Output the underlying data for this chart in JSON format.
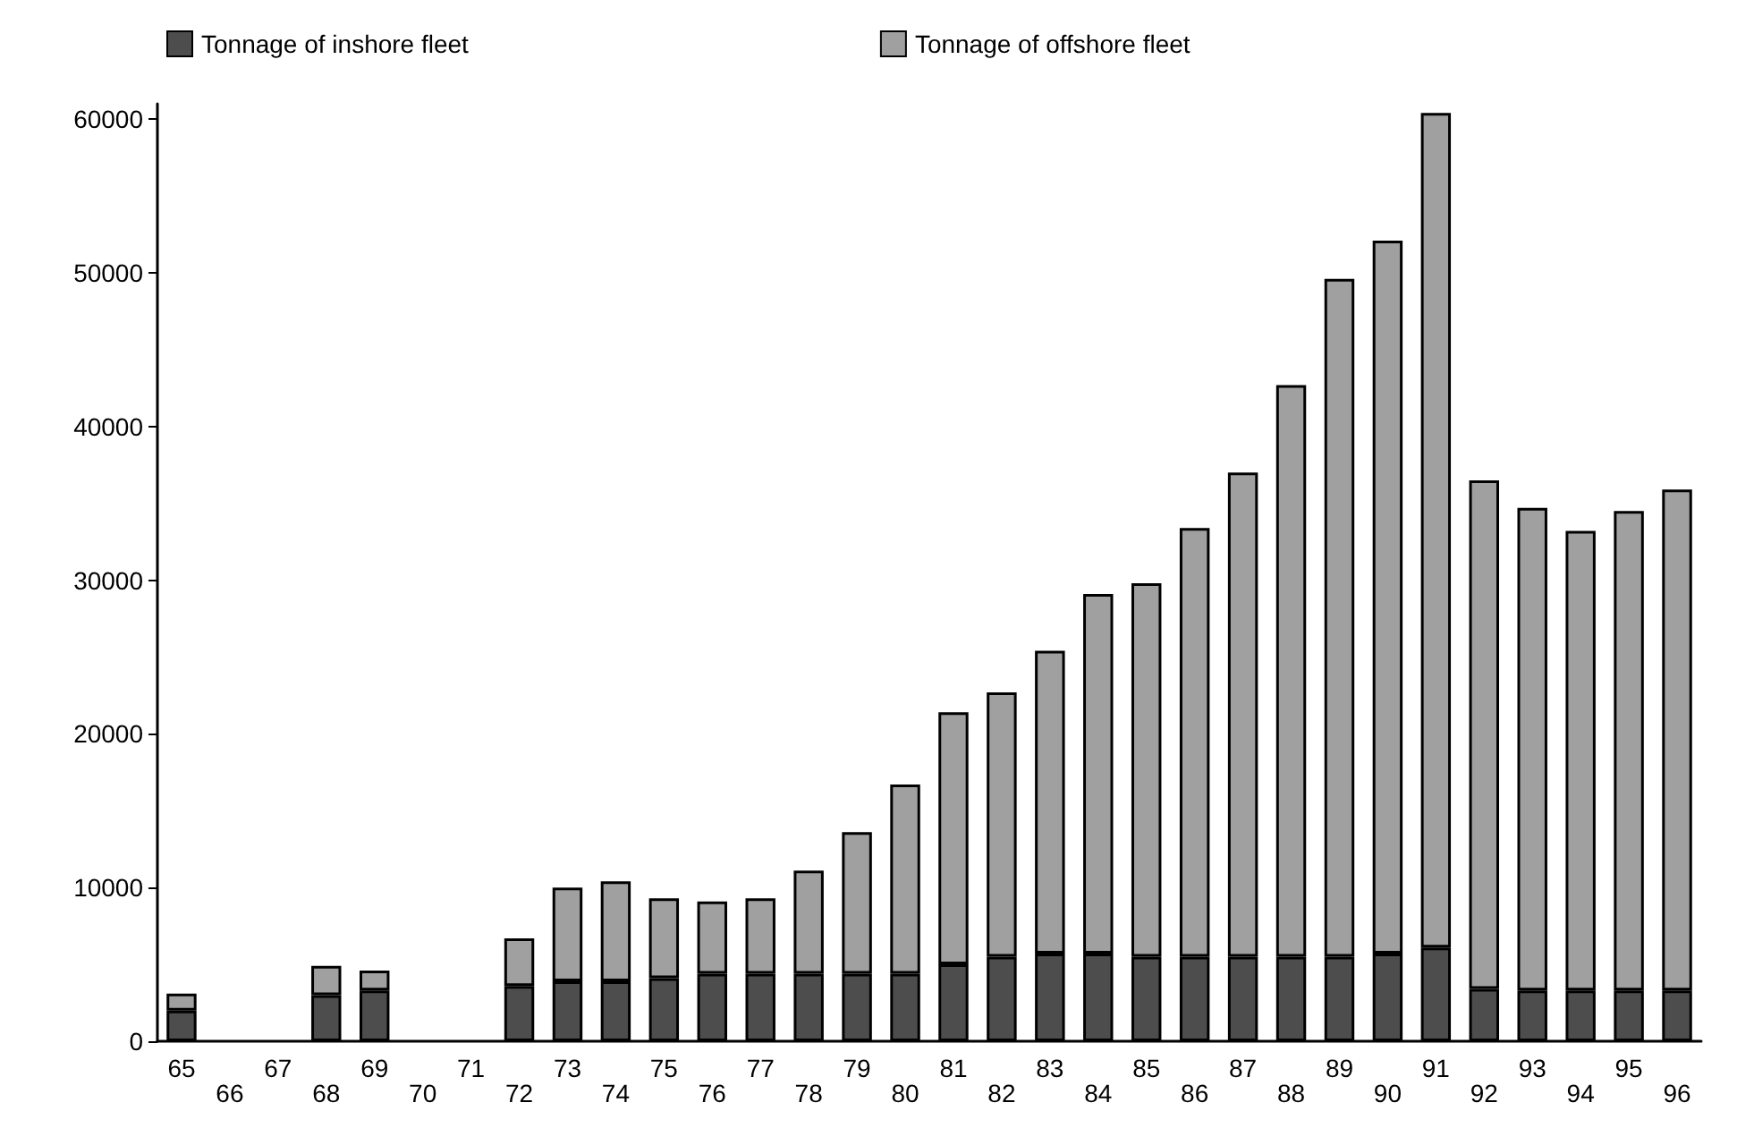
{
  "chart_data": {
    "type": "bar",
    "stacked": true,
    "categories": [
      "65",
      "66",
      "67",
      "68",
      "69",
      "70",
      "71",
      "72",
      "73",
      "74",
      "75",
      "76",
      "77",
      "78",
      "79",
      "80",
      "81",
      "82",
      "83",
      "84",
      "85",
      "86",
      "87",
      "88",
      "89",
      "90",
      "91",
      "92",
      "93",
      "94",
      "95",
      "96"
    ],
    "series": [
      {
        "name": "Tonnage of inshore fleet",
        "color": "#4d4d4d",
        "values": [
          2000,
          null,
          null,
          3000,
          3300,
          null,
          null,
          3600,
          3900,
          3900,
          4100,
          4400,
          4400,
          4400,
          4400,
          4400,
          5000,
          5500,
          5700,
          5700,
          5500,
          5500,
          5500,
          5500,
          5500,
          5700,
          6100,
          3400,
          3300,
          3300,
          3300,
          3300
        ]
      },
      {
        "name": "Tonnage of offshore fleet",
        "color": "#a0a0a0",
        "values": [
          1100,
          null,
          null,
          1900,
          1300,
          null,
          null,
          3100,
          6100,
          6500,
          5200,
          4700,
          4900,
          6700,
          9200,
          12300,
          16400,
          17200,
          19700,
          23400,
          24300,
          27900,
          31500,
          37200,
          44100,
          46400,
          54300,
          33100,
          31400,
          29900,
          31200,
          32600
        ]
      }
    ],
    "ylim": [
      0,
      61000
    ],
    "yticks": [
      0,
      10000,
      20000,
      30000,
      40000,
      50000,
      60000
    ],
    "grid": false,
    "legend": "top left"
  }
}
